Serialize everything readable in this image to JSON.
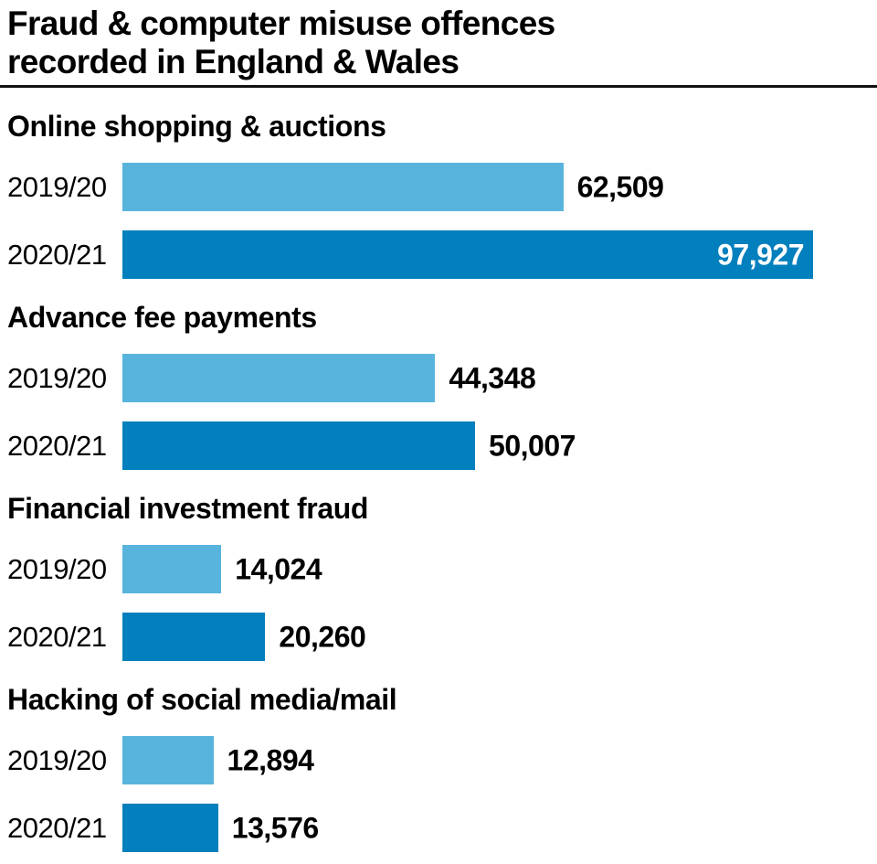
{
  "chart_data": {
    "type": "bar",
    "orientation": "horizontal",
    "title": "Fraud & computer misuse offences recorded in England & Wales",
    "title_line1": "Fraud & computer misuse offences",
    "title_line2": "recorded in England & Wales",
    "categories": [
      "2019/20",
      "2020/21"
    ],
    "colors": {
      "2019/20": "#58b4dd",
      "2020/21": "#027fbd"
    },
    "value_axis_max": 97927,
    "legend": "none",
    "grid": false,
    "sections": [
      {
        "label": "Online shopping & auctions",
        "rows": [
          {
            "year": "2019/20",
            "value": 62509,
            "value_label": "62,509",
            "label_inside": false
          },
          {
            "year": "2020/21",
            "value": 97927,
            "value_label": "97,927",
            "label_inside": true
          }
        ]
      },
      {
        "label": "Advance fee payments",
        "rows": [
          {
            "year": "2019/20",
            "value": 44348,
            "value_label": "44,348",
            "label_inside": false
          },
          {
            "year": "2020/21",
            "value": 50007,
            "value_label": "50,007",
            "label_inside": false
          }
        ]
      },
      {
        "label": "Financial investment fraud",
        "rows": [
          {
            "year": "2019/20",
            "value": 14024,
            "value_label": "14,024",
            "label_inside": false
          },
          {
            "year": "2020/21",
            "value": 20260,
            "value_label": "20,260",
            "label_inside": false
          }
        ]
      },
      {
        "label": "Hacking of social media/mail",
        "rows": [
          {
            "year": "2019/20",
            "value": 12894,
            "value_label": "12,894",
            "label_inside": false
          },
          {
            "year": "2020/21",
            "value": 13576,
            "value_label": "13,576",
            "label_inside": false
          }
        ]
      }
    ]
  }
}
